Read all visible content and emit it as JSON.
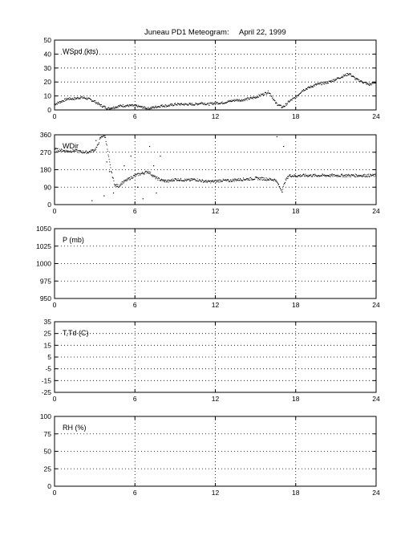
{
  "figure": {
    "title": "Juneau PD1 Meteogram:",
    "date": "April 22, 1999"
  },
  "chart_data": [
    {
      "type": "scatter",
      "label": "WSpd (kts)",
      "xlim": [
        0,
        24
      ],
      "ylim": [
        0,
        50
      ],
      "xticks": [
        0,
        6,
        12,
        18,
        24
      ],
      "yticks": [
        0,
        10,
        20,
        30,
        40,
        50
      ],
      "grid": true,
      "series": [
        {
          "x": [
            0,
            0.5,
            1,
            1.5,
            2,
            2.5,
            3,
            3.5,
            4,
            4.5,
            5,
            5.5,
            6,
            6.5,
            7,
            7.5,
            8,
            8.5,
            9,
            9.5,
            10,
            10.5,
            11,
            11.5,
            12,
            12.5,
            13,
            13.5,
            14,
            14.5,
            15,
            15.5,
            16,
            16.2,
            16.5,
            16.8,
            17,
            17.2,
            17.5,
            18,
            18.5,
            19,
            19.5,
            20,
            20.5,
            21,
            21.5,
            22,
            22.5,
            23,
            23.5,
            24
          ],
          "y": [
            4,
            6,
            8,
            8,
            9,
            8,
            6,
            3,
            1,
            2,
            3,
            3,
            3,
            2,
            1,
            2,
            3,
            3,
            4,
            4,
            4,
            4,
            5,
            4,
            5,
            5,
            6,
            7,
            7,
            8,
            9,
            11,
            13,
            10,
            5,
            3,
            2,
            3,
            6,
            9,
            14,
            16,
            18,
            19,
            20,
            22,
            24,
            26,
            22,
            20,
            18,
            20
          ]
        }
      ]
    },
    {
      "type": "scatter",
      "label": "WDir",
      "xlim": [
        0,
        24
      ],
      "ylim": [
        0,
        360
      ],
      "xticks": [
        0,
        6,
        12,
        18,
        24
      ],
      "yticks": [
        0,
        90,
        180,
        270,
        360
      ],
      "grid": true,
      "series": [
        {
          "x": [
            0,
            0.5,
            1,
            1.5,
            2,
            2.5,
            3,
            3.2,
            3.4,
            3.6,
            3.8,
            4,
            4.2,
            4.5,
            4.8,
            5,
            5.5,
            6,
            6.5,
            7,
            7.5,
            8,
            8.5,
            9,
            9.5,
            10,
            10.5,
            11,
            11.5,
            12,
            12.5,
            13,
            13.5,
            14,
            14.5,
            15,
            15.5,
            16,
            16.5,
            16.8,
            17,
            17.2,
            17.5,
            18,
            18.5,
            19,
            19.5,
            20,
            20.5,
            21,
            21.5,
            22,
            22.5,
            23,
            23.5,
            24
          ],
          "y": [
            285,
            280,
            275,
            278,
            272,
            270,
            282,
            300,
            340,
            355,
            350,
            260,
            180,
            100,
            95,
            110,
            130,
            150,
            160,
            170,
            140,
            125,
            120,
            130,
            128,
            125,
            130,
            122,
            118,
            120,
            125,
            122,
            128,
            130,
            132,
            135,
            134,
            130,
            128,
            90,
            70,
            120,
            150,
            148,
            150,
            150,
            150,
            150,
            150,
            150,
            150,
            150,
            150,
            150,
            150,
            150
          ]
        },
        {
          "x": [
            2.8,
            3.1,
            3.3,
            3.7,
            3.9,
            4.1,
            4.4,
            5.2,
            5.7,
            6.2,
            6.6,
            7.1,
            7.4,
            7.6,
            7.9,
            8.2,
            16.6,
            17.1
          ],
          "y": [
            20,
            330,
            360,
            45,
            220,
            170,
            60,
            200,
            250,
            90,
            30,
            300,
            200,
            60,
            250,
            120,
            350,
            300
          ]
        }
      ]
    },
    {
      "type": "scatter",
      "label": "P (mb)",
      "xlim": [
        0,
        24
      ],
      "ylim": [
        950,
        1050
      ],
      "xticks": [
        0,
        6,
        12,
        18,
        24
      ],
      "yticks": [
        950,
        975,
        1000,
        1025,
        1050
      ],
      "grid": true,
      "series": []
    },
    {
      "type": "scatter",
      "label": "T,Td (C)",
      "xlim": [
        0,
        24
      ],
      "ylim": [
        -25,
        35
      ],
      "xticks": [
        0,
        6,
        12,
        18,
        24
      ],
      "yticks": [
        -25,
        -15,
        -5,
        5,
        15,
        25,
        35
      ],
      "ytick_labels_visible": [
        -25,
        -15,
        -5,
        5,
        15,
        25,
        35
      ],
      "grid": true,
      "series": []
    },
    {
      "type": "scatter",
      "label": "RH (%)",
      "xlim": [
        0,
        24
      ],
      "ylim": [
        0,
        100
      ],
      "xticks": [
        0,
        6,
        12,
        18,
        24
      ],
      "yticks": [
        0,
        25,
        50,
        75,
        100
      ],
      "grid": true,
      "series": []
    }
  ]
}
